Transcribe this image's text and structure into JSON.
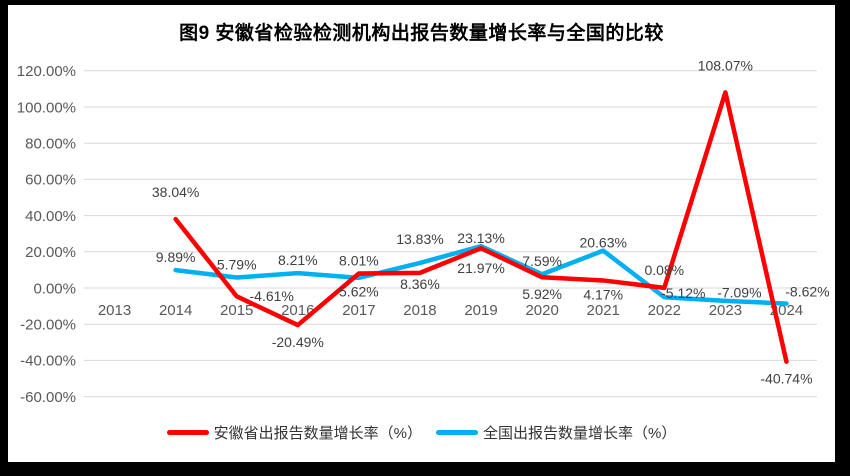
{
  "title": "图9 安徽省检验检测机构出报告数量增长率与全国的比较",
  "frame": {
    "border_color": "#000000",
    "canvas_color": "#FFFFFF"
  },
  "chart_data": {
    "type": "line",
    "title": "图9 安徽省检验检测机构出报告数量增长率与全国的比较",
    "categories": [
      "2013",
      "2014",
      "2015",
      "2016",
      "2017",
      "2018",
      "2019",
      "2020",
      "2021",
      "2022",
      "2023",
      "2024"
    ],
    "xlabel": "",
    "ylabel": "",
    "ylim": [
      -60,
      120
    ],
    "grid": true,
    "grid_color": "#D9D9D9",
    "axis_text_color": "#595959",
    "data_label_color": "#404040",
    "legend_position": "bottom",
    "y_axis": {
      "ticks": [
        {
          "value": 120,
          "label": "120.00%"
        },
        {
          "value": 100,
          "label": "100.00%"
        },
        {
          "value": 80,
          "label": "80.00%"
        },
        {
          "value": 60,
          "label": "60.00%"
        },
        {
          "value": 40,
          "label": "40.00%"
        },
        {
          "value": 20,
          "label": "20.00%"
        },
        {
          "value": 0,
          "label": "0.00%"
        },
        {
          "value": -20,
          "label": "-20.00%"
        },
        {
          "value": -40,
          "label": "-40.00%"
        },
        {
          "value": -60,
          "label": "-60.00%"
        }
      ]
    },
    "series": [
      {
        "name": "安徽省出报告数量增长率（%）",
        "color": "#FF0000",
        "points": [
          {
            "year": "2014",
            "value": 38.04,
            "label": "38.04%",
            "label_pos": "above",
            "label_dy": -27
          },
          {
            "year": "2015",
            "value": -4.61,
            "label": "-4.61%",
            "label_pos": "below",
            "label_dx": 35,
            "label_dy": 0
          },
          {
            "year": "2016",
            "value": -20.49,
            "label": "-20.49%",
            "label_pos": "below"
          },
          {
            "year": "2017",
            "value": 8.01,
            "label": "8.01%",
            "label_pos": "above"
          },
          {
            "year": "2018",
            "value": 8.36,
            "label": "8.36%",
            "label_pos": "below",
            "label_dy": 11
          },
          {
            "year": "2019",
            "value": 21.97,
            "label": "21.97%",
            "label_pos": "below",
            "label_dy": 20
          },
          {
            "year": "2020",
            "value": 5.92,
            "label": "5.92%",
            "label_pos": "below"
          },
          {
            "year": "2021",
            "value": 4.17,
            "label": "4.17%",
            "label_pos": "below",
            "label_dy": 14
          },
          {
            "year": "2022",
            "value": 0.08,
            "label": "0.08%",
            "label_pos": "above",
            "label_dy": -18
          },
          {
            "year": "2023",
            "value": 108.07,
            "label": "108.07%",
            "label_pos": "above",
            "label_dy": -27
          },
          {
            "year": "2024",
            "value": -40.74,
            "label": "-40.74%",
            "label_pos": "below"
          }
        ]
      },
      {
        "name": "全国出报告数量增长率（%）",
        "color": "#00B0F0",
        "points": [
          {
            "year": "2014",
            "value": 9.89,
            "label": "9.89%",
            "label_pos": "above"
          },
          {
            "year": "2015",
            "value": 5.79,
            "label": "5.79%",
            "label_pos": "above"
          },
          {
            "year": "2016",
            "value": 8.21,
            "label": "8.21%",
            "label_pos": "above"
          },
          {
            "year": "2017",
            "value": 5.62,
            "label": "5.62%",
            "label_pos": "below",
            "label_dy": 14
          },
          {
            "year": "2018",
            "value": 13.83,
            "label": "13.83%",
            "label_pos": "above",
            "label_dy": -24
          },
          {
            "year": "2019",
            "value": 23.13,
            "label": "23.13%",
            "label_pos": "above",
            "label_dy": -8
          },
          {
            "year": "2020",
            "value": 7.59,
            "label": "7.59%",
            "label_pos": "above"
          },
          {
            "year": "2021",
            "value": 20.63,
            "label": "20.63%",
            "label_pos": "above",
            "label_dy": -8
          },
          {
            "year": "2022",
            "value": -5.12,
            "label": "-5.12%",
            "label_pos": "above",
            "label_dx": 19,
            "label_dy": -4
          },
          {
            "year": "2023",
            "value": -7.09,
            "label": "-7.09%",
            "label_pos": "above",
            "label_dx": 14,
            "label_dy": -8
          },
          {
            "year": "2024",
            "value": -8.62,
            "label": "-8.62%",
            "label_pos": "above",
            "label_dx": 21,
            "label_dy": -12
          }
        ]
      }
    ]
  }
}
